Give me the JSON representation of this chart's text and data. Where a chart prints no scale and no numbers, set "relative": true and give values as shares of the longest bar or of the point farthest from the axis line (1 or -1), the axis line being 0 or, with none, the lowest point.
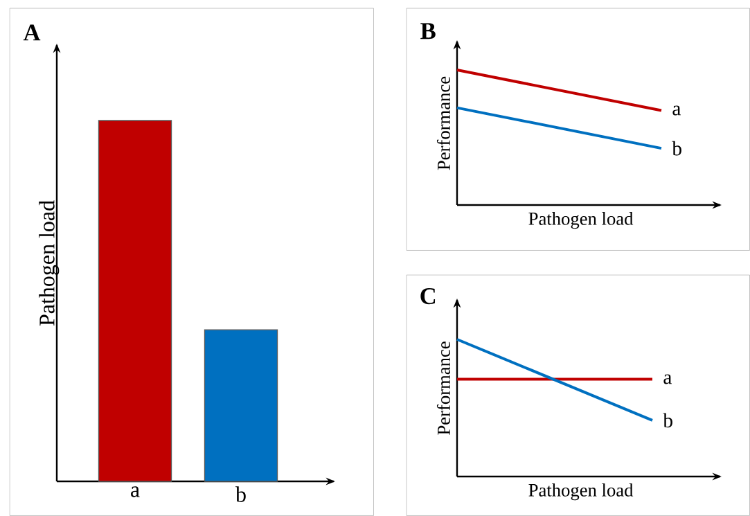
{
  "chart_data": [
    {
      "type": "bar",
      "title": "A",
      "ylabel": "Pathogen load",
      "categories": [
        "a",
        "b"
      ],
      "values": [
        1,
        0.42
      ],
      "colors": [
        "#c00000",
        "#0070c0"
      ],
      "relative": true
    },
    {
      "type": "line",
      "title": "B",
      "xlabel": "Pathogen load",
      "ylabel": "Performance",
      "categories": [
        null,
        null
      ],
      "relative": true,
      "series": [
        {
          "name": "a",
          "color": "#c00000",
          "values": [
            1,
            0.7
          ]
        },
        {
          "name": "b",
          "color": "#0070c0",
          "values": [
            0.72,
            0.42
          ]
        }
      ]
    },
    {
      "type": "line",
      "title": "C",
      "xlabel": "Pathogen load",
      "ylabel": "Performance",
      "categories": [
        null,
        null
      ],
      "relative": true,
      "series": [
        {
          "name": "a",
          "color": "#c00000",
          "values": [
            0.71,
            0.71
          ]
        },
        {
          "name": "b",
          "color": "#0070c0",
          "values": [
            1,
            0.41
          ]
        }
      ]
    }
  ]
}
